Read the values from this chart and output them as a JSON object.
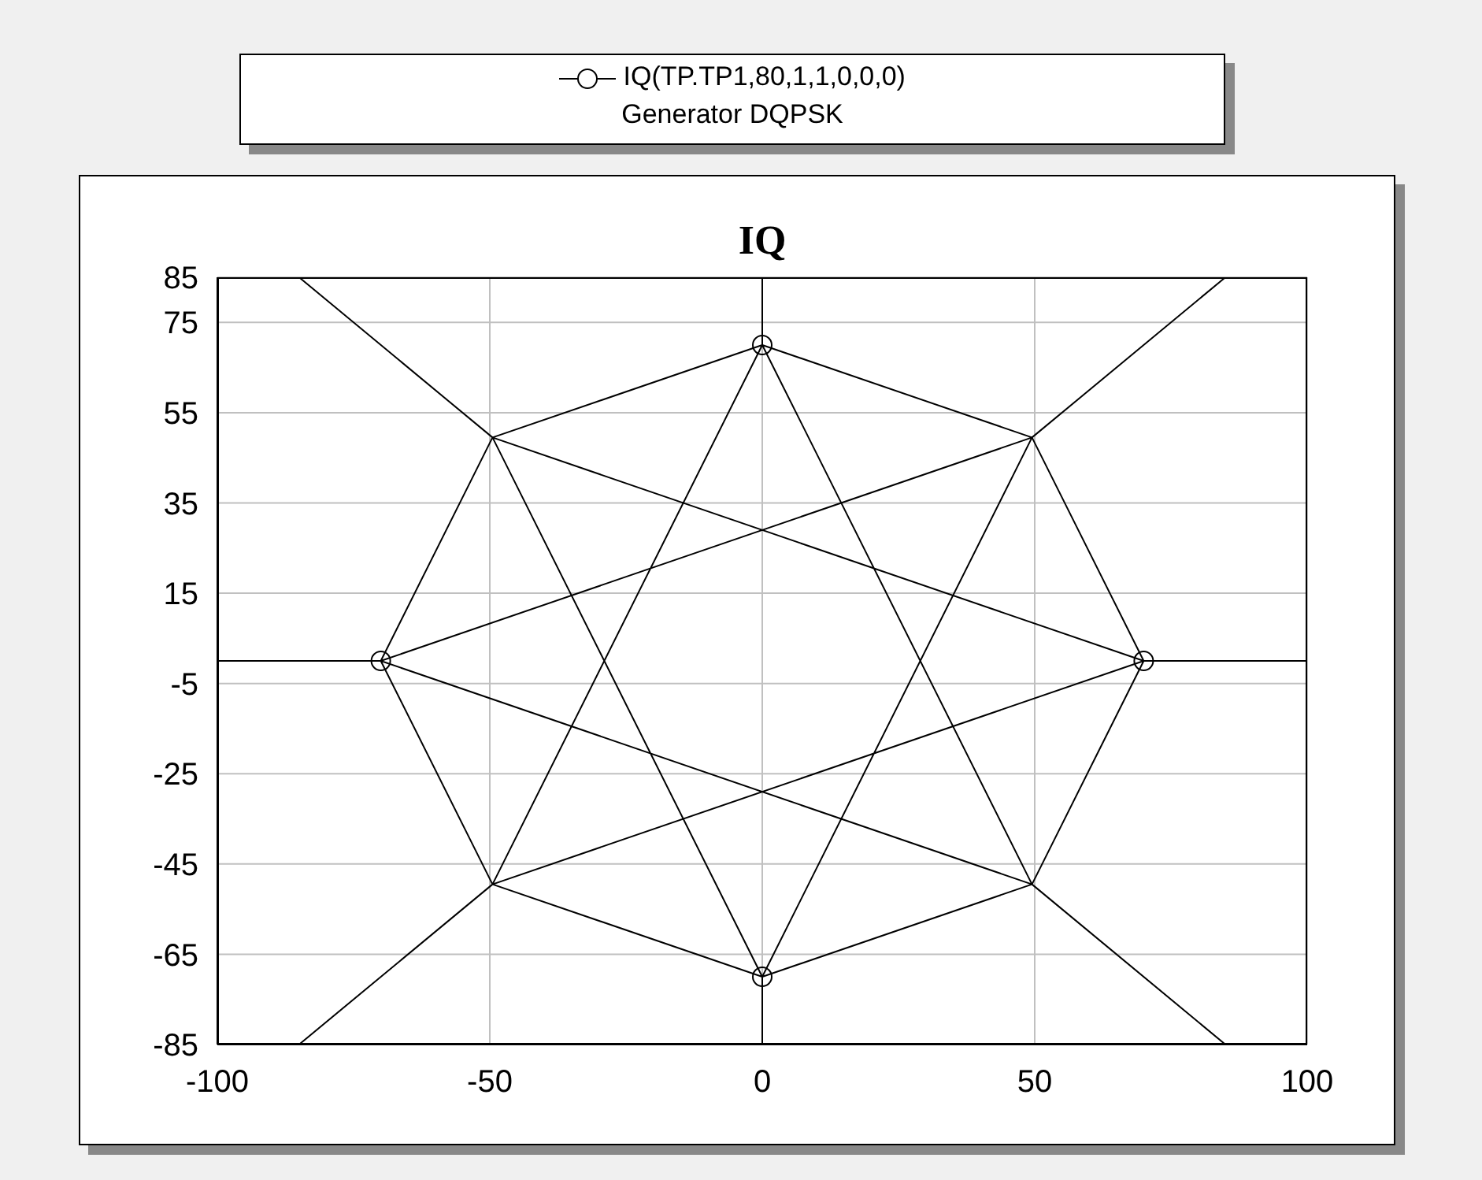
{
  "chart_data": {
    "type": "line",
    "title": "IQ",
    "annotations": [
      "Generator DQPSK"
    ],
    "series": [
      {
        "color": "#000000",
        "marker": "none",
        "x": [
          100,
          70,
          49.5,
          85,
          49.5,
          0,
          0,
          0,
          -49.5,
          -85,
          -49.5,
          -70,
          -100,
          -70,
          -49.5,
          -85,
          -49.5,
          0,
          0,
          0,
          49.5,
          85,
          49.5,
          70,
          -49.5,
          0,
          49.5,
          -70,
          49.5,
          0,
          -49.5,
          70
        ],
        "values": [
          0,
          0,
          49.5,
          85,
          49.5,
          70,
          85,
          70,
          49.5,
          85,
          49.5,
          0,
          0,
          0,
          -49.5,
          -85,
          -49.5,
          -70,
          -85,
          -70,
          -49.5,
          -85,
          -49.5,
          0,
          49.5,
          -70,
          49.5,
          0,
          -49.5,
          70,
          -49.5,
          0
        ]
      },
      {
        "type": "scatter",
        "name": "IQ(TP.TP1,80,1,1,0,0,0)",
        "color": "#000000",
        "marker": "circle",
        "x": [
          70,
          0,
          -70,
          0
        ],
        "values": [
          0,
          70,
          0,
          -70
        ]
      }
    ],
    "xlim": [
      -100,
      100
    ],
    "xticks": [
      -100,
      -50,
      0,
      50,
      100
    ],
    "ylim": [
      -85,
      85
    ],
    "yticks": [
      -85,
      -65,
      -45,
      -25,
      -5,
      15,
      35,
      55,
      75,
      85
    ],
    "grid": true,
    "legend": "top"
  }
}
